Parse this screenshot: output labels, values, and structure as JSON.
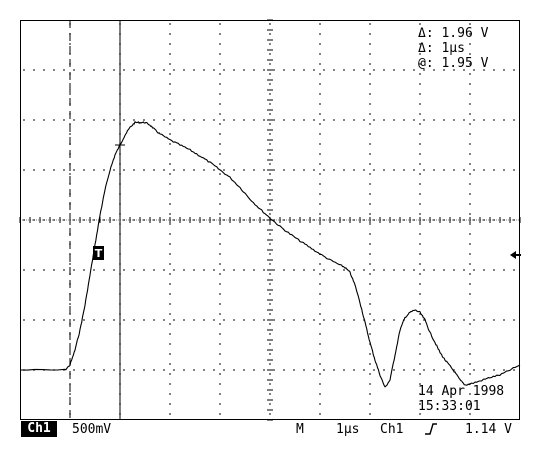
{
  "cursor_readout": {
    "delta_v": "Δ: 1.96 V",
    "delta_t": "Δ: 1µs",
    "at_v": "@: 1.95 V"
  },
  "trigger_marker_label": "T",
  "datetime": {
    "date": "14 Apr 1998",
    "time": "15:33:01"
  },
  "status_bar": {
    "channel_badge": "Ch1",
    "volts_per_div": "500mV",
    "mode": "M",
    "time_per_div": "1µs",
    "trigger_source": "Ch1",
    "trigger_slope_icon": "rising-edge-icon",
    "trigger_level": "1.14 V"
  },
  "chart_data": {
    "type": "line",
    "title": "",
    "xlabel": "",
    "ylabel": "",
    "grid": true,
    "x_divisions": 10,
    "y_divisions": 8,
    "xlim": [
      -5,
      5
    ],
    "ylim": [
      -4,
      4
    ],
    "cursors": {
      "vertical_dashed_div": -4,
      "vertical_solid_div": -3
    },
    "series": [
      {
        "x": [
          -5.0,
          -4.1,
          -4.0,
          -3.9,
          -3.8,
          -3.7,
          -3.6,
          -3.5,
          -3.4,
          -3.3,
          -3.2,
          -3.1,
          -3.0,
          -2.9,
          -2.8,
          -2.7,
          -2.6,
          -2.5,
          -2.4,
          -2.3,
          -2.2,
          -2.0,
          -1.8,
          -1.6,
          -1.4,
          -1.2,
          -1.0,
          -0.8,
          -0.6,
          -0.4,
          -0.2,
          0.0,
          0.2,
          0.4,
          0.6,
          0.8,
          1.0,
          1.2,
          1.4,
          1.5,
          1.6,
          1.7,
          1.8,
          1.9,
          2.0,
          2.1,
          2.2,
          2.3,
          2.4,
          2.5,
          2.6,
          2.7,
          2.8,
          2.9,
          3.0,
          3.1,
          3.2,
          3.3,
          3.4,
          3.5,
          3.6,
          3.7,
          3.8,
          3.9,
          4.0,
          4.2,
          4.4,
          4.6,
          4.8,
          5.0
        ],
        "y": [
          -3.0,
          -3.0,
          -2.9,
          -2.6,
          -2.2,
          -1.7,
          -1.1,
          -0.5,
          0.1,
          0.6,
          1.0,
          1.3,
          1.5,
          1.7,
          1.85,
          1.95,
          1.95,
          1.95,
          1.9,
          1.8,
          1.72,
          1.6,
          1.5,
          1.4,
          1.28,
          1.15,
          1.0,
          0.85,
          0.65,
          0.42,
          0.22,
          0.04,
          -0.13,
          -0.28,
          -0.42,
          -0.55,
          -0.68,
          -0.8,
          -0.9,
          -0.95,
          -1.05,
          -1.3,
          -1.65,
          -2.05,
          -2.45,
          -2.8,
          -3.1,
          -3.35,
          -3.2,
          -2.7,
          -2.2,
          -1.95,
          -1.85,
          -1.8,
          -1.85,
          -2.0,
          -2.25,
          -2.45,
          -2.65,
          -2.8,
          -2.92,
          -3.05,
          -3.2,
          -3.3,
          -3.28,
          -3.22,
          -3.15,
          -3.1,
          -3.0,
          -2.9
        ]
      }
    ]
  }
}
